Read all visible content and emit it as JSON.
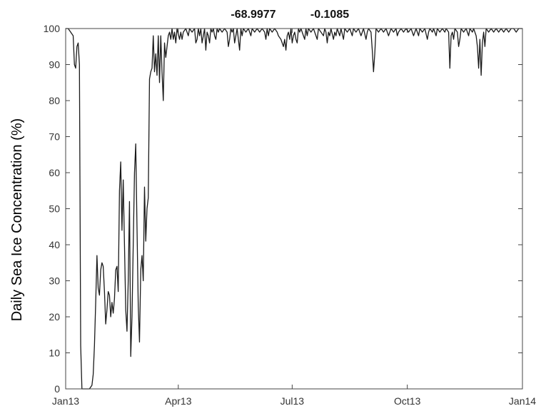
{
  "chart_data": {
    "type": "line",
    "title_parts": [
      "-68.9977",
      "-0.1085"
    ],
    "xlabel": "",
    "ylabel": "Daily Sea Ice Concentration (%)",
    "xlim": [
      0,
      365
    ],
    "ylim": [
      0,
      100
    ],
    "x_ticks": [
      {
        "label": "Jan13",
        "day": 0
      },
      {
        "label": "Apr13",
        "day": 90
      },
      {
        "label": "Jul13",
        "day": 181
      },
      {
        "label": "Oct13",
        "day": 273
      },
      {
        "label": "Jan14",
        "day": 365
      }
    ],
    "y_ticks": [
      0,
      10,
      20,
      30,
      40,
      50,
      60,
      70,
      80,
      90,
      100
    ],
    "grid": false,
    "line_color": "#1a1a1a",
    "series": [
      {
        "x_unit": "day of year from Jan13",
        "points": [
          [
            0,
            100
          ],
          [
            2,
            100
          ],
          [
            4,
            99
          ],
          [
            6,
            98
          ],
          [
            7,
            90
          ],
          [
            8,
            89
          ],
          [
            9,
            95
          ],
          [
            10,
            96
          ],
          [
            11,
            90
          ],
          [
            12,
            12
          ],
          [
            13,
            0
          ],
          [
            15,
            0
          ],
          [
            17,
            0
          ],
          [
            19,
            0
          ],
          [
            21,
            1
          ],
          [
            22,
            4
          ],
          [
            23,
            12
          ],
          [
            24,
            24
          ],
          [
            25,
            37
          ],
          [
            26,
            28
          ],
          [
            27,
            26
          ],
          [
            28,
            33
          ],
          [
            29,
            35
          ],
          [
            30,
            34
          ],
          [
            31,
            27
          ],
          [
            32,
            18
          ],
          [
            33,
            22
          ],
          [
            34,
            27
          ],
          [
            35,
            26
          ],
          [
            36,
            20
          ],
          [
            37,
            24
          ],
          [
            38,
            21
          ],
          [
            39,
            25
          ],
          [
            40,
            33
          ],
          [
            41,
            34
          ],
          [
            42,
            27
          ],
          [
            43,
            55
          ],
          [
            44,
            63
          ],
          [
            45,
            44
          ],
          [
            46,
            58
          ],
          [
            47,
            40
          ],
          [
            48,
            22
          ],
          [
            49,
            16
          ],
          [
            50,
            30
          ],
          [
            51,
            52
          ],
          [
            52,
            9
          ],
          [
            53,
            20
          ],
          [
            54,
            40
          ],
          [
            55,
            60
          ],
          [
            56,
            68
          ],
          [
            57,
            45
          ],
          [
            58,
            23
          ],
          [
            59,
            13
          ],
          [
            60,
            33
          ],
          [
            61,
            37
          ],
          [
            62,
            30
          ],
          [
            63,
            56
          ],
          [
            64,
            41
          ],
          [
            65,
            50
          ],
          [
            66,
            53
          ],
          [
            67,
            86
          ],
          [
            68,
            88
          ],
          [
            69,
            89
          ],
          [
            70,
            98
          ],
          [
            71,
            88
          ],
          [
            72,
            93
          ],
          [
            73,
            87
          ],
          [
            74,
            98
          ],
          [
            75,
            85
          ],
          [
            76,
            98
          ],
          [
            77,
            88
          ],
          [
            78,
            80
          ],
          [
            79,
            96
          ],
          [
            80,
            92
          ],
          [
            81,
            95
          ],
          [
            82,
            98
          ],
          [
            83,
            99
          ],
          [
            84,
            97
          ],
          [
            85,
            100
          ],
          [
            86,
            97
          ],
          [
            87,
            99
          ],
          [
            88,
            96
          ],
          [
            89,
            100
          ],
          [
            91,
            97
          ],
          [
            92,
            99
          ],
          [
            93,
            97
          ],
          [
            94,
            99
          ],
          [
            96,
            100
          ],
          [
            98,
            98
          ],
          [
            99,
            100
          ],
          [
            101,
            99
          ],
          [
            103,
            100
          ],
          [
            104,
            96
          ],
          [
            105,
            97
          ],
          [
            106,
            100
          ],
          [
            107,
            98
          ],
          [
            108,
            100
          ],
          [
            109,
            96
          ],
          [
            110,
            98
          ],
          [
            111,
            100
          ],
          [
            112,
            94
          ],
          [
            113,
            99
          ],
          [
            114,
            98
          ],
          [
            115,
            96
          ],
          [
            116,
            100
          ],
          [
            117,
            99
          ],
          [
            118,
            100
          ],
          [
            119,
            98
          ],
          [
            120,
            97
          ],
          [
            121,
            100
          ],
          [
            122,
            99
          ],
          [
            123,
            100
          ],
          [
            125,
            99
          ],
          [
            127,
            100
          ],
          [
            129,
            99
          ],
          [
            130,
            95
          ],
          [
            131,
            97
          ],
          [
            132,
            100
          ],
          [
            133,
            99
          ],
          [
            134,
            100
          ],
          [
            135,
            96
          ],
          [
            136,
            98
          ],
          [
            137,
            100
          ],
          [
            138,
            97
          ],
          [
            139,
            94
          ],
          [
            140,
            100
          ],
          [
            141,
            98
          ],
          [
            142,
            100
          ],
          [
            144,
            99
          ],
          [
            146,
            100
          ],
          [
            148,
            98
          ],
          [
            149,
            100
          ],
          [
            151,
            99
          ],
          [
            153,
            100
          ],
          [
            155,
            99
          ],
          [
            157,
            100
          ],
          [
            159,
            99
          ],
          [
            160,
            97
          ],
          [
            161,
            100
          ],
          [
            162,
            98
          ],
          [
            163,
            100
          ],
          [
            165,
            99
          ],
          [
            167,
            100
          ],
          [
            169,
            99
          ],
          [
            170,
            98
          ],
          [
            172,
            97
          ],
          [
            173,
            96
          ],
          [
            174,
            95
          ],
          [
            175,
            97
          ],
          [
            176,
            94
          ],
          [
            177,
            98
          ],
          [
            178,
            99
          ],
          [
            179,
            97
          ],
          [
            180,
            100
          ],
          [
            181,
            96
          ],
          [
            182,
            98
          ],
          [
            183,
            99
          ],
          [
            184,
            97
          ],
          [
            185,
            96
          ],
          [
            186,
            100
          ],
          [
            187,
            99
          ],
          [
            188,
            100
          ],
          [
            190,
            98
          ],
          [
            191,
            97
          ],
          [
            192,
            100
          ],
          [
            193,
            98
          ],
          [
            194,
            100
          ],
          [
            196,
            99
          ],
          [
            198,
            100
          ],
          [
            200,
            98
          ],
          [
            201,
            97
          ],
          [
            202,
            100
          ],
          [
            204,
            99
          ],
          [
            206,
            98
          ],
          [
            207,
            100
          ],
          [
            208,
            99
          ],
          [
            209,
            96
          ],
          [
            210,
            99
          ],
          [
            211,
            98
          ],
          [
            212,
            100
          ],
          [
            214,
            97
          ],
          [
            215,
            99
          ],
          [
            216,
            98
          ],
          [
            217,
            100
          ],
          [
            219,
            98
          ],
          [
            220,
            100
          ],
          [
            222,
            97
          ],
          [
            223,
            100
          ],
          [
            225,
            99
          ],
          [
            227,
            100
          ],
          [
            229,
            98
          ],
          [
            230,
            100
          ],
          [
            232,
            99
          ],
          [
            234,
            100
          ],
          [
            236,
            98
          ],
          [
            238,
            100
          ],
          [
            240,
            97
          ],
          [
            241,
            99
          ],
          [
            242,
            100
          ],
          [
            244,
            99
          ],
          [
            245,
            94
          ],
          [
            246,
            88
          ],
          [
            247,
            93
          ],
          [
            248,
            100
          ],
          [
            250,
            99
          ],
          [
            252,
            100
          ],
          [
            254,
            99
          ],
          [
            256,
            100
          ],
          [
            258,
            98
          ],
          [
            259,
            99
          ],
          [
            260,
            100
          ],
          [
            262,
            99
          ],
          [
            264,
            100
          ],
          [
            265,
            98
          ],
          [
            266,
            99
          ],
          [
            268,
            100
          ],
          [
            270,
            99
          ],
          [
            272,
            100
          ],
          [
            274,
            99
          ],
          [
            276,
            100
          ],
          [
            278,
            98
          ],
          [
            279,
            99
          ],
          [
            280,
            100
          ],
          [
            282,
            98
          ],
          [
            283,
            100
          ],
          [
            285,
            99
          ],
          [
            287,
            100
          ],
          [
            289,
            97
          ],
          [
            290,
            99
          ],
          [
            291,
            100
          ],
          [
            293,
            99
          ],
          [
            294,
            100
          ],
          [
            296,
            98
          ],
          [
            297,
            100
          ],
          [
            299,
            99
          ],
          [
            301,
            100
          ],
          [
            303,
            99
          ],
          [
            304,
            100
          ],
          [
            306,
            99
          ],
          [
            307,
            89
          ],
          [
            308,
            98
          ],
          [
            309,
            99
          ],
          [
            310,
            97
          ],
          [
            311,
            100
          ],
          [
            313,
            99
          ],
          [
            314,
            95
          ],
          [
            315,
            97
          ],
          [
            316,
            100
          ],
          [
            318,
            99
          ],
          [
            320,
            100
          ],
          [
            322,
            98
          ],
          [
            323,
            100
          ],
          [
            325,
            99
          ],
          [
            326,
            100
          ],
          [
            328,
            98
          ],
          [
            329,
            95
          ],
          [
            330,
            89
          ],
          [
            331,
            97
          ],
          [
            332,
            87
          ],
          [
            333,
            96
          ],
          [
            334,
            99
          ],
          [
            335,
            95
          ],
          [
            336,
            100
          ],
          [
            338,
            99
          ],
          [
            340,
            100
          ],
          [
            342,
            99
          ],
          [
            344,
            100
          ],
          [
            346,
            99
          ],
          [
            348,
            100
          ],
          [
            350,
            99
          ],
          [
            352,
            100
          ],
          [
            354,
            99
          ],
          [
            356,
            100
          ],
          [
            358,
            100
          ],
          [
            360,
            99
          ],
          [
            362,
            100
          ],
          [
            365,
            100
          ]
        ]
      }
    ]
  }
}
